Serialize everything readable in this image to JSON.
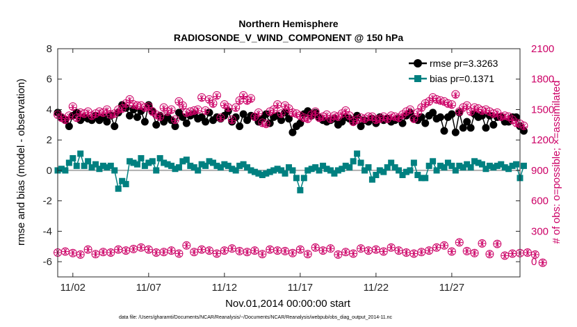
{
  "chart_data": {
    "type": "line",
    "title": "Northern Hemisphere",
    "subtitle": "RADIOSONDE_V_WIND_COMPONENT @ 150 hPa",
    "xlabel": "Nov.01,2014 00:00:00 start",
    "ylabel_left": "rmse and bias (model - observation)",
    "ylabel_right": "# of obs: o=possible; ×=assimilated",
    "footnote": "data file: /Users/gharamti/Documents/NCAR/Reanalysis/~/Documents/NCAR/Reanalysis/webpub/obs_diag_output_2014-11.nc",
    "xlim": [
      0,
      30.5
    ],
    "ylim_left": [
      -7,
      8
    ],
    "ylim_right": [
      -150,
      2100
    ],
    "x_ticks": [
      1,
      6,
      11,
      16,
      21,
      26
    ],
    "x_tick_labels": [
      "11/02",
      "11/07",
      "11/12",
      "11/17",
      "11/22",
      "11/27"
    ],
    "y_ticks_left": [
      -6,
      -4,
      -2,
      0,
      2,
      4,
      6,
      8
    ],
    "y_ticks_right": [
      0,
      300,
      600,
      900,
      1200,
      1500,
      1800,
      2100
    ],
    "colors": {
      "rmse": "#000000",
      "bias": "#008080",
      "obs": "#cc0066",
      "zero_line": "#b0b0b0"
    },
    "legend": [
      {
        "label": "rmse pr=3.3263",
        "series": "rmse"
      },
      {
        "label": "bias pr=0.1371",
        "series": "bias"
      }
    ],
    "series": [
      {
        "name": "rmse",
        "axis": "left",
        "x_start": 0,
        "x_step": 0.25,
        "values": [
          3.8,
          3.5,
          3.3,
          2.9,
          3.6,
          3.8,
          3.3,
          3.5,
          3.4,
          3.3,
          3.6,
          3.3,
          3.5,
          3.2,
          3.6,
          2.9,
          3.8,
          4.3,
          4.1,
          3.6,
          4.0,
          3.5,
          3.9,
          3.2,
          4.3,
          3.9,
          3.0,
          3.6,
          3.2,
          3.5,
          3.3,
          2.9,
          3.8,
          3.5,
          3.1,
          3.6,
          3.7,
          3.4,
          3.5,
          3.2,
          3.8,
          3.3,
          3.5,
          3.4,
          3.6,
          3.9,
          3.2,
          3.5,
          2.9,
          3.7,
          3.3,
          3.6,
          3.5,
          3.2,
          3.4,
          3.7,
          3.1,
          3.5,
          3.6,
          3.3,
          3.8,
          3.4,
          2.5,
          2.9,
          3.1,
          3.7,
          3.9,
          3.6,
          3.8,
          3.5,
          3.3,
          3.2,
          3.3,
          3.4,
          3.0,
          3.2,
          3.5,
          3.4,
          3.2,
          3.6,
          2.9,
          3.3,
          3.2,
          3.4,
          3.1,
          3.5,
          3.3,
          3.4,
          3.2,
          3.3,
          3.4,
          3.1,
          3.6,
          3.8,
          3.4,
          3.3,
          3.5,
          3.1,
          3.6,
          3.8,
          3.4,
          3.5,
          2.6,
          3.5,
          3.7,
          2.5,
          3.8,
          2.8,
          3.2,
          2.8,
          3.7,
          3.5,
          3.6,
          2.8,
          3.6,
          3.0,
          3.5,
          3.5,
          3.2,
          3.2,
          3.5,
          3.5,
          2.9,
          2.6
        ]
      },
      {
        "name": "bias",
        "axis": "left",
        "x_start": 0,
        "x_step": 0.25,
        "values": [
          0.0,
          0.1,
          0.0,
          0.5,
          0.8,
          0.3,
          1.1,
          0.3,
          0.6,
          0.2,
          0.4,
          0.1,
          0.3,
          0.2,
          0.3,
          0.0,
          -1.2,
          -0.7,
          -0.9,
          0.6,
          0.5,
          0.4,
          0.8,
          0.3,
          0.5,
          0.6,
          0.0,
          0.8,
          0.5,
          0.4,
          0.3,
          0.1,
          0.2,
          0.6,
          0.7,
          0.3,
          0.2,
          0.0,
          0.4,
          0.3,
          0.6,
          0.5,
          0.3,
          0.2,
          0.4,
          0.3,
          0.1,
          0.0,
          0.3,
          0.4,
          0.2,
          0.0,
          -0.1,
          -0.2,
          -0.3,
          -0.2,
          -0.1,
          0.0,
          0.1,
          0.0,
          -0.2,
          0.2,
          0.0,
          -0.5,
          -1.3,
          -0.5,
          0.0,
          0.1,
          0.2,
          0.0,
          0.3,
          0.1,
          0.0,
          -0.2,
          0.0,
          0.1,
          0.3,
          0.2,
          0.6,
          1.1,
          0.5,
          0.0,
          0.2,
          -0.6,
          -0.3,
          0.0,
          -0.1,
          0.2,
          0.5,
          0.2,
          0.0,
          -0.3,
          -0.1,
          0.0,
          0.5,
          -0.3,
          -0.5,
          -0.5,
          0.3,
          0.6,
          0.0,
          0.3,
          0.2,
          0.5,
          0.3,
          0.0,
          0.3,
          0.2,
          0.4,
          0.2,
          0.6,
          0.5,
          0.4,
          0.1,
          0.3,
          0.2,
          0.3,
          0.4,
          0.2,
          0.1,
          0.3,
          0.4,
          -0.5,
          0.3
        ]
      },
      {
        "name": "obs_possible",
        "axis": "right",
        "x_start": 0,
        "x_step": 0.25,
        "values": [
          1450,
          1420,
          1400,
          1440,
          1530,
          1420,
          1470,
          1460,
          1480,
          1440,
          1460,
          1480,
          1470,
          1500,
          1450,
          1460,
          1500,
          1510,
          1560,
          1600,
          1550,
          1540,
          1540,
          1520,
          1530,
          1480,
          1450,
          1430,
          1520,
          1480,
          1500,
          1400,
          1580,
          1540,
          1470,
          1480,
          1490,
          1500,
          1620,
          1490,
          1600,
          1560,
          1640,
          1420,
          1550,
          1520,
          1400,
          1520,
          1590,
          1640,
          1590,
          1610,
          1430,
          1470,
          1370,
          1360,
          1480,
          1500,
          1550,
          1460,
          1540,
          1510,
          1470,
          1460,
          1440,
          1420,
          1410,
          1450,
          1480,
          1420,
          1430,
          1450,
          1410,
          1440,
          1430,
          1460,
          1490,
          1440,
          1380,
          1400,
          1420,
          1410,
          1430,
          1430,
          1400,
          1410,
          1430,
          1410,
          1440,
          1430,
          1420,
          1450,
          1480,
          1500,
          1410,
          1470,
          1520,
          1560,
          1580,
          1620,
          1600,
          1590,
          1580,
          1560,
          1550,
          1650,
          1480,
          1520,
          1540,
          1480,
          1520,
          1510,
          1490,
          1500,
          1480,
          1460,
          1470,
          1430,
          1440,
          1430,
          1400,
          1370,
          1360,
          1340
        ]
      },
      {
        "name": "obs_assimilated",
        "axis": "right",
        "x_start": 0,
        "x_step": 0.25,
        "values": [
          1440,
          1410,
          1390,
          1430,
          1520,
          1410,
          1460,
          1450,
          1470,
          1430,
          1450,
          1470,
          1460,
          1490,
          1440,
          1450,
          1490,
          1500,
          1550,
          1590,
          1540,
          1530,
          1530,
          1510,
          1520,
          1470,
          1440,
          1420,
          1510,
          1470,
          1490,
          1390,
          1570,
          1530,
          1460,
          1470,
          1480,
          1490,
          1610,
          1480,
          1590,
          1550,
          1630,
          1410,
          1540,
          1510,
          1390,
          1510,
          1580,
          1630,
          1580,
          1600,
          1420,
          1460,
          1360,
          1350,
          1470,
          1490,
          1540,
          1450,
          1530,
          1500,
          1460,
          1450,
          1430,
          1410,
          1400,
          1440,
          1470,
          1410,
          1420,
          1440,
          1400,
          1430,
          1420,
          1450,
          1480,
          1430,
          1370,
          1390,
          1410,
          1400,
          1420,
          1420,
          1390,
          1400,
          1420,
          1400,
          1430,
          1420,
          1410,
          1440,
          1470,
          1490,
          1400,
          1460,
          1510,
          1550,
          1570,
          1610,
          1590,
          1580,
          1570,
          1550,
          1540,
          1640,
          1470,
          1510,
          1530,
          1470,
          1510,
          1500,
          1480,
          1490,
          1470,
          1450,
          1460,
          1420,
          1430,
          1420,
          1390,
          1360,
          1350,
          1330
        ]
      },
      {
        "name": "obs_possible_low",
        "axis": "right",
        "x_start": 0,
        "x_step": 0.5,
        "values": [
          90,
          100,
          85,
          70,
          120,
          75,
          95,
          90,
          120,
          110,
          125,
          140,
          120,
          90,
          95,
          110,
          80,
          160,
          95,
          120,
          110,
          80,
          110,
          130,
          105,
          95,
          110,
          75,
          120,
          110,
          105,
          85,
          120,
          75,
          140,
          110,
          130,
          70,
          95,
          80,
          130,
          110,
          120,
          100,
          140,
          110,
          90,
          80,
          95,
          110,
          140,
          160,
          100,
          190,
          105,
          85,
          180,
          75,
          175,
          60,
          80,
          85,
          90,
          70,
          -10
        ]
      }
    ]
  }
}
